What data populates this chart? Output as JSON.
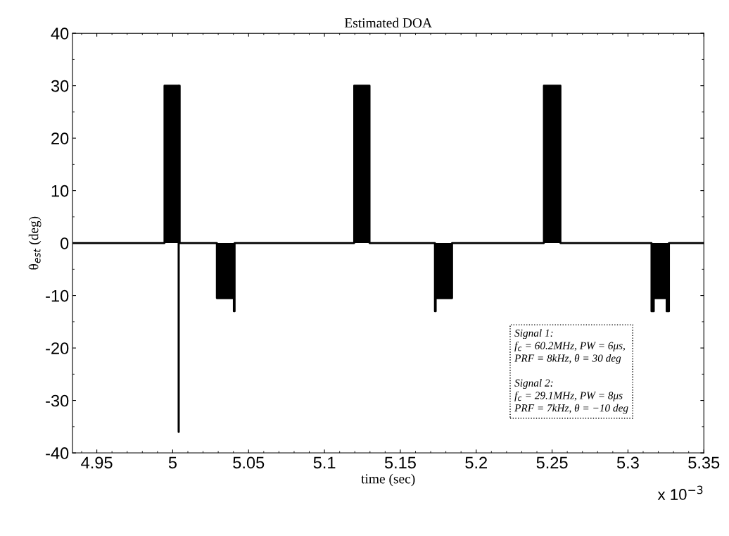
{
  "chart_data": {
    "type": "area",
    "title": "Estimated DOA",
    "xlabel": "time (sec)",
    "ylabel": "θ$_{est}$ (deg)",
    "series": [
      {
        "color": "#000000",
        "x": [
          4.934,
          4.9946,
          4.9946,
          5.0039,
          5.0039,
          5.004,
          5.004,
          5.0046,
          5.0046,
          5.0291,
          5.0291,
          5.0403,
          5.0403,
          5.0408,
          5.0408,
          5.1196,
          5.1196,
          5.1297,
          5.1297,
          5.1728,
          5.1728,
          5.1733,
          5.1733,
          5.1841,
          5.1841,
          5.2446,
          5.2446,
          5.2555,
          5.2555,
          5.3155,
          5.3155,
          5.317,
          5.317,
          5.3255,
          5.3255,
          5.327,
          5.327,
          5.35
        ],
        "values": [
          0,
          0,
          30,
          30,
          -36,
          -36,
          30,
          30,
          0,
          0,
          -10.5,
          -10.5,
          -13,
          -13,
          0,
          0,
          30,
          30,
          0,
          0,
          -13,
          -13,
          -10.5,
          -10.5,
          0,
          0,
          30,
          30,
          0,
          0,
          -13,
          -13,
          -10.5,
          -10.5,
          -13,
          -13,
          0,
          0
        ]
      }
    ],
    "xlim": [
      4.934,
      5.35
    ],
    "xticks": [
      4.95,
      5,
      5.05,
      5.1,
      5.15,
      5.2,
      5.25,
      5.3,
      5.35
    ],
    "ylim": [
      -40,
      40
    ],
    "yticks": [
      -40,
      -30,
      -20,
      -10,
      0,
      10,
      20,
      30,
      40
    ],
    "grid": false,
    "legend": false,
    "annotations": [
      "x 10$^{−3}$",
      "Signal 1:\nf$_{c}$ = 60.2MHz, PW = 6μs,\nPRF = 8kHz, θ = 30 deg\n\nSignal 2:\nf$_{c}$ = 29.1MHz, PW = 8μs\nPRF = 7kHz, θ = −10 deg"
    ]
  }
}
